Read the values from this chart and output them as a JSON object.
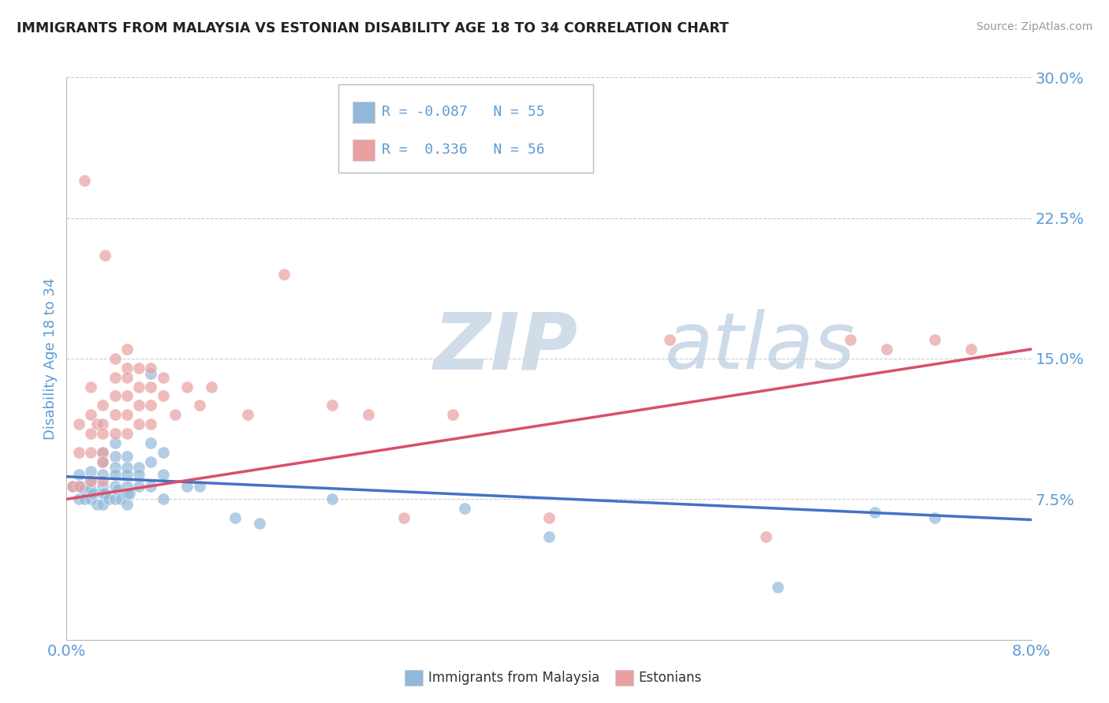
{
  "title": "IMMIGRANTS FROM MALAYSIA VS ESTONIAN DISABILITY AGE 18 TO 34 CORRELATION CHART",
  "source": "Source: ZipAtlas.com",
  "ylabel": "Disability Age 18 to 34",
  "xlim": [
    0.0,
    0.08
  ],
  "ylim": [
    0.0,
    0.3
  ],
  "yticks": [
    0.075,
    0.15,
    0.225,
    0.3
  ],
  "ytick_labels": [
    "7.5%",
    "15.0%",
    "22.5%",
    "30.0%"
  ],
  "xticks": [
    0.0,
    0.08
  ],
  "xtick_labels": [
    "0.0%",
    "8.0%"
  ],
  "legend_r_blue": "R = -0.087",
  "legend_n_blue": "N = 55",
  "legend_r_pink": "R =  0.336",
  "legend_n_pink": "N = 56",
  "blue_color": "#92b8d9",
  "pink_color": "#e8a0a0",
  "trend_blue_color": "#4472c4",
  "trend_pink_color": "#d94f6b",
  "watermark_color": "#d0dce8",
  "title_color": "#222222",
  "axis_label_color": "#5b9bd5",
  "tick_label_color": "#5b9bd5",
  "blue_x": [
    0.0005,
    0.001,
    0.001,
    0.0012,
    0.0015,
    0.0015,
    0.002,
    0.002,
    0.002,
    0.002,
    0.0022,
    0.0025,
    0.003,
    0.003,
    0.003,
    0.003,
    0.003,
    0.003,
    0.0032,
    0.0035,
    0.004,
    0.004,
    0.004,
    0.004,
    0.004,
    0.004,
    0.0042,
    0.0045,
    0.005,
    0.005,
    0.005,
    0.005,
    0.005,
    0.005,
    0.0052,
    0.006,
    0.006,
    0.006,
    0.007,
    0.007,
    0.007,
    0.007,
    0.008,
    0.008,
    0.008,
    0.01,
    0.011,
    0.014,
    0.016,
    0.022,
    0.033,
    0.04,
    0.059,
    0.067,
    0.072
  ],
  "blue_y": [
    0.082,
    0.088,
    0.075,
    0.082,
    0.08,
    0.075,
    0.09,
    0.085,
    0.08,
    0.075,
    0.078,
    0.072,
    0.1,
    0.095,
    0.088,
    0.082,
    0.078,
    0.072,
    0.078,
    0.075,
    0.105,
    0.098,
    0.092,
    0.088,
    0.082,
    0.075,
    0.08,
    0.075,
    0.098,
    0.092,
    0.088,
    0.082,
    0.078,
    0.072,
    0.078,
    0.092,
    0.088,
    0.082,
    0.142,
    0.105,
    0.095,
    0.082,
    0.1,
    0.088,
    0.075,
    0.082,
    0.082,
    0.065,
    0.062,
    0.075,
    0.07,
    0.055,
    0.028,
    0.068,
    0.065
  ],
  "pink_x": [
    0.0005,
    0.001,
    0.001,
    0.001,
    0.0015,
    0.002,
    0.002,
    0.002,
    0.002,
    0.002,
    0.0025,
    0.003,
    0.003,
    0.003,
    0.003,
    0.003,
    0.003,
    0.0032,
    0.004,
    0.004,
    0.004,
    0.004,
    0.004,
    0.005,
    0.005,
    0.005,
    0.005,
    0.005,
    0.005,
    0.006,
    0.006,
    0.006,
    0.006,
    0.007,
    0.007,
    0.007,
    0.007,
    0.008,
    0.008,
    0.009,
    0.01,
    0.011,
    0.012,
    0.015,
    0.018,
    0.022,
    0.025,
    0.028,
    0.032,
    0.04,
    0.05,
    0.058,
    0.065,
    0.068,
    0.072,
    0.075
  ],
  "pink_y": [
    0.082,
    0.115,
    0.1,
    0.082,
    0.245,
    0.135,
    0.12,
    0.11,
    0.1,
    0.085,
    0.115,
    0.125,
    0.115,
    0.11,
    0.1,
    0.095,
    0.085,
    0.205,
    0.15,
    0.14,
    0.13,
    0.12,
    0.11,
    0.155,
    0.145,
    0.14,
    0.13,
    0.12,
    0.11,
    0.145,
    0.135,
    0.125,
    0.115,
    0.145,
    0.135,
    0.125,
    0.115,
    0.14,
    0.13,
    0.12,
    0.135,
    0.125,
    0.135,
    0.12,
    0.195,
    0.125,
    0.12,
    0.065,
    0.12,
    0.065,
    0.16,
    0.055,
    0.16,
    0.155,
    0.16,
    0.155
  ],
  "trend_blue_x0": 0.0,
  "trend_blue_x1": 0.08,
  "trend_blue_y0": 0.087,
  "trend_blue_y1": 0.064,
  "trend_pink_x0": 0.0,
  "trend_pink_x1": 0.08,
  "trend_pink_y0": 0.075,
  "trend_pink_y1": 0.155
}
